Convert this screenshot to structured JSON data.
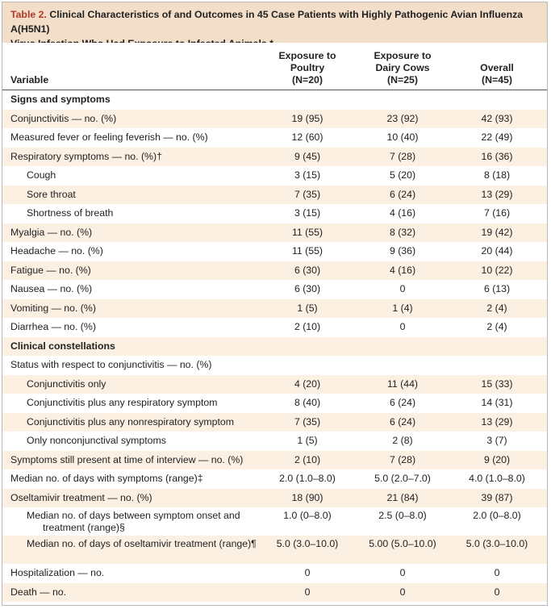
{
  "table": {
    "number": "Table 2.",
    "title_line1": "Clinical Characteristics of and Outcomes in 45 Case Patients with Highly Pathogenic Avian Influenza A(H5N1)",
    "title_line2": "Virus Infection Who Had Exposure to Infected Animals.*",
    "colors": {
      "title_bg": "#f3dfc9",
      "row_shade": "#fbf0e2",
      "table_number": "#b1382a"
    },
    "header": {
      "variable": "Variable",
      "col1": [
        "Exposure to",
        "Poultry",
        "(N=20)"
      ],
      "col2": [
        "Exposure to",
        "Dairy Cows",
        "(N=25)"
      ],
      "col3": [
        "Overall",
        "(N=45)"
      ]
    },
    "rows": [
      {
        "label": "Signs and symptoms",
        "kind": "section",
        "v": [
          "",
          "",
          ""
        ]
      },
      {
        "label": "Conjunctivitis — no. (%)",
        "kind": "normal",
        "v": [
          "19 (95)",
          "23 (92)",
          "42 (93)"
        ]
      },
      {
        "label": "Measured fever or feeling feverish — no. (%)",
        "kind": "normal",
        "v": [
          "12 (60)",
          "10 (40)",
          "22 (49)"
        ]
      },
      {
        "label": "Respiratory symptoms — no. (%)†",
        "kind": "normal",
        "v": [
          "9 (45)",
          "7 (28)",
          "16 (36)"
        ]
      },
      {
        "label": "Cough",
        "kind": "indent",
        "v": [
          "3 (15)",
          "5 (20)",
          "8 (18)"
        ]
      },
      {
        "label": "Sore throat",
        "kind": "indent",
        "v": [
          "7 (35)",
          "6 (24)",
          "13 (29)"
        ]
      },
      {
        "label": "Shortness of breath",
        "kind": "indent",
        "v": [
          "3 (15)",
          "4 (16)",
          "7 (16)"
        ]
      },
      {
        "label": "Myalgia — no. (%)",
        "kind": "normal",
        "v": [
          "11 (55)",
          "8 (32)",
          "19 (42)"
        ]
      },
      {
        "label": "Headache — no. (%)",
        "kind": "normal",
        "v": [
          "11 (55)",
          "9 (36)",
          "20 (44)"
        ]
      },
      {
        "label": "Fatigue — no. (%)",
        "kind": "normal",
        "v": [
          "6 (30)",
          "4 (16)",
          "10 (22)"
        ]
      },
      {
        "label": "Nausea — no. (%)",
        "kind": "normal",
        "v": [
          "6 (30)",
          "0",
          "6 (13)"
        ]
      },
      {
        "label": "Vomiting — no. (%)",
        "kind": "normal",
        "v": [
          "1 (5)",
          "1 (4)",
          "2 (4)"
        ]
      },
      {
        "label": "Diarrhea — no. (%)",
        "kind": "normal",
        "v": [
          "2 (10)",
          "0",
          "2 (4)"
        ]
      },
      {
        "label": "Clinical constellations",
        "kind": "section",
        "v": [
          "",
          "",
          ""
        ]
      },
      {
        "label": "Status with respect to conjunctivitis — no. (%)",
        "kind": "normal",
        "v": [
          "",
          "",
          ""
        ]
      },
      {
        "label": "Conjunctivitis only",
        "kind": "indent",
        "v": [
          "4 (20)",
          "11 (44)",
          "15 (33)"
        ]
      },
      {
        "label": "Conjunctivitis plus any respiratory symptom",
        "kind": "indent",
        "v": [
          "8 (40)",
          "6 (24)",
          "14 (31)"
        ]
      },
      {
        "label": "Conjunctivitis plus any nonrespiratory symptom",
        "kind": "indent",
        "v": [
          "7 (35)",
          "6 (24)",
          "13 (29)"
        ]
      },
      {
        "label": "Only nonconjunctival symptoms",
        "kind": "indent",
        "v": [
          "1 (5)",
          "2 (8)",
          "3 (7)"
        ]
      },
      {
        "label": "Symptoms still present at time of interview — no. (%)",
        "kind": "normal",
        "v": [
          "2 (10)",
          "7 (28)",
          "9 (20)"
        ]
      },
      {
        "label": "Median no. of days with symptoms (range)‡",
        "kind": "normal",
        "v": [
          "2.0 (1.0–8.0)",
          "5.0 (2.0–7.0)",
          "4.0 (1.0–8.0)"
        ]
      },
      {
        "label": "Oseltamivir treatment — no. (%)",
        "kind": "normal",
        "v": [
          "18 (90)",
          "21 (84)",
          "39 (87)"
        ]
      },
      {
        "label": "Median no. of days between symptom onset and treatment (range)§",
        "kind": "indent-tall",
        "v": [
          "1.0 (0–8.0)",
          "2.5 (0–8.0)",
          "2.0 (0–8.0)"
        ]
      },
      {
        "label": "Median no. of days of oseltamivir treatment (range)¶",
        "kind": "indent-tall",
        "v": [
          "5.0 (3.0–10.0)",
          "5.00 (5.0–10.0)",
          "5.0 (3.0–10.0)"
        ]
      },
      {
        "label": "Hospitalization — no.",
        "kind": "normal",
        "v": [
          "0",
          "0",
          "0"
        ]
      },
      {
        "label": "Death — no.",
        "kind": "normal",
        "v": [
          "0",
          "0",
          "0"
        ]
      }
    ]
  }
}
